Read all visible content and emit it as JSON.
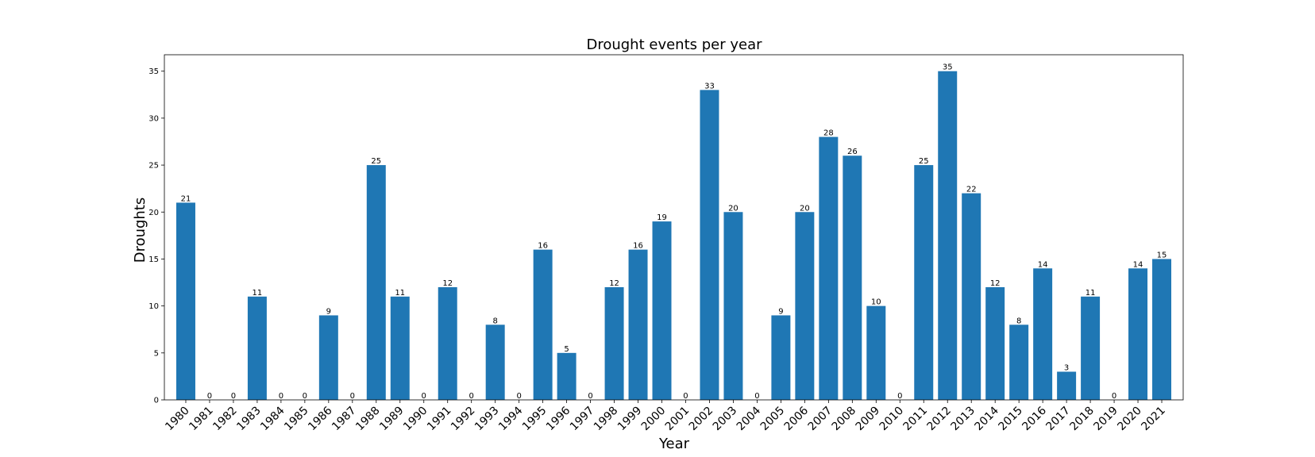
{
  "chart_data": {
    "type": "bar",
    "title": "Drought events per year",
    "xlabel": "Year",
    "ylabel": "Droughts",
    "ylim": [
      0,
      36.75
    ],
    "yticks": [
      0,
      5,
      10,
      15,
      20,
      25,
      30,
      35
    ],
    "grid": false,
    "bar_color": "#1f77b4",
    "categories": [
      "1980",
      "1981",
      "1982",
      "1983",
      "1984",
      "1985",
      "1986",
      "1987",
      "1988",
      "1989",
      "1990",
      "1991",
      "1992",
      "1993",
      "1994",
      "1995",
      "1996",
      "1997",
      "1998",
      "1999",
      "2000",
      "2001",
      "2002",
      "2003",
      "2004",
      "2005",
      "2006",
      "2007",
      "2008",
      "2009",
      "2010",
      "2011",
      "2012",
      "2013",
      "2014",
      "2015",
      "2016",
      "2017",
      "2018",
      "2019",
      "2020",
      "2021"
    ],
    "values": [
      21,
      0,
      0,
      11,
      0,
      0,
      9,
      0,
      25,
      11,
      0,
      12,
      0,
      8,
      0,
      16,
      5,
      0,
      12,
      16,
      19,
      0,
      33,
      20,
      0,
      9,
      20,
      28,
      26,
      10,
      0,
      25,
      35,
      22,
      12,
      8,
      14,
      3,
      11,
      0,
      14,
      15
    ]
  }
}
